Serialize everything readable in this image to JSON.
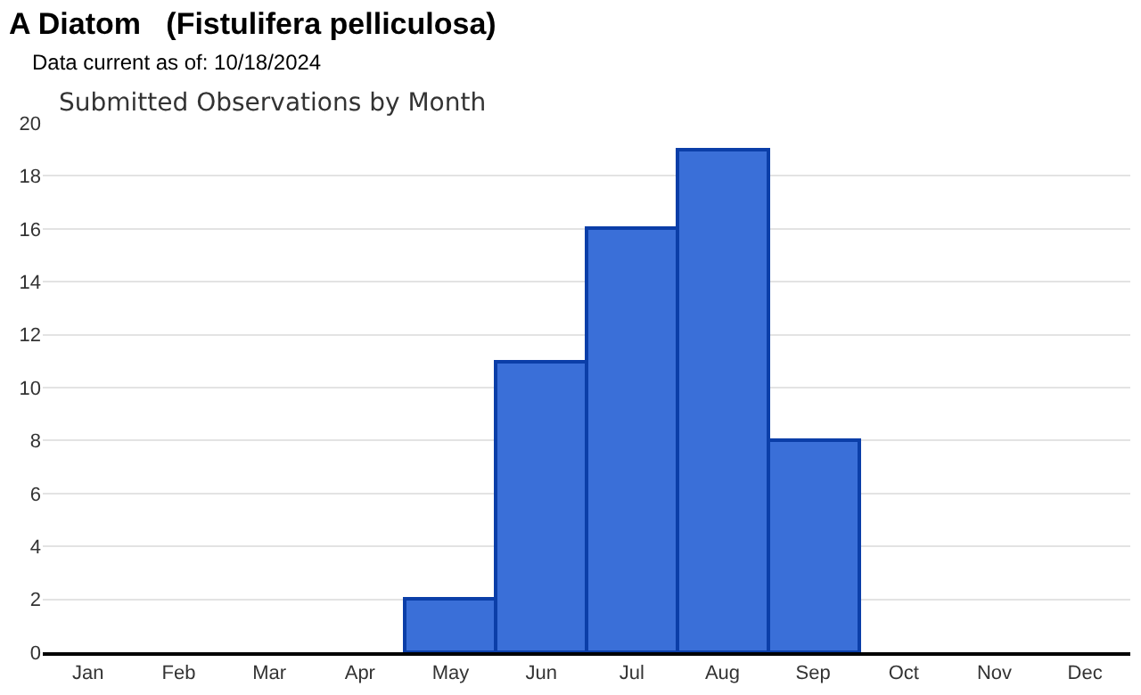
{
  "chart_data": {
    "type": "bar",
    "title": "A Diatom   (Fistulifera pelliculosa)",
    "subtitle": "Data current as of: 10/18/2024",
    "annotations": [
      "Submitted Observations by Month"
    ],
    "categories": [
      "Jan",
      "Feb",
      "Mar",
      "Apr",
      "May",
      "Jun",
      "Jul",
      "Aug",
      "Sep",
      "Oct",
      "Nov",
      "Dec"
    ],
    "values": [
      0,
      0,
      0,
      0,
      2,
      11,
      16,
      19,
      8,
      0,
      0,
      0
    ],
    "color": "#3a6fd8",
    "ylim": [
      0,
      20
    ],
    "yticks": [
      0,
      2,
      4,
      6,
      8,
      10,
      12,
      14,
      16,
      18,
      20
    ],
    "grid": "y"
  }
}
